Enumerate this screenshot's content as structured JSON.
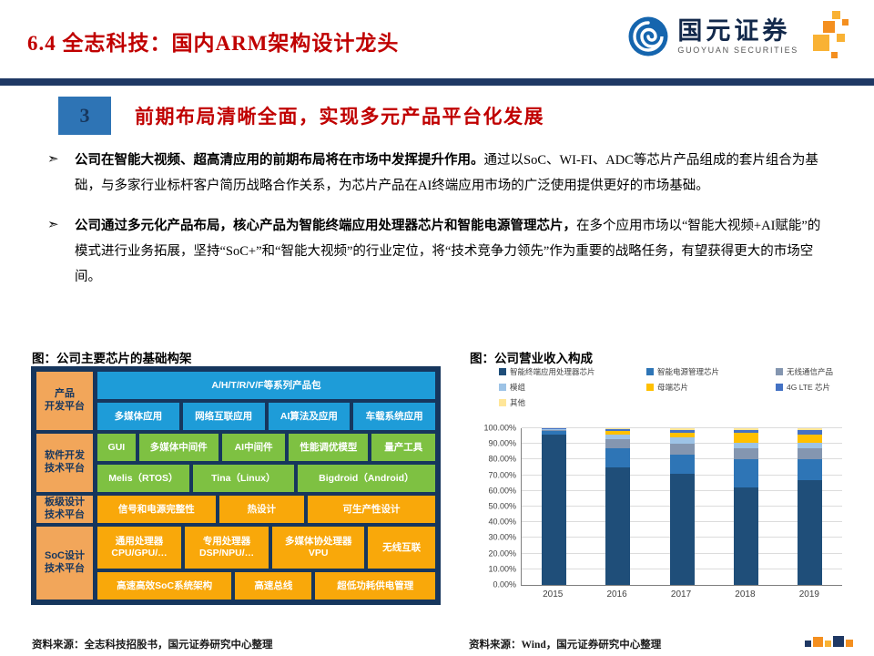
{
  "colors": {
    "title_red": "#C00000",
    "navy_bar": "#1F3864",
    "section_box_blue": "#2E74B5",
    "logo_blue": "#1565AE",
    "logo_orange": "#F48F1F"
  },
  "header": {
    "title": "6.4 全志科技：国内ARM架构设计龙头",
    "logo_cn": "国元证券",
    "logo_en": "GUOYUAN SECURITIES"
  },
  "section": {
    "number": "3",
    "title": "前期布局清晰全面，实现多元产品平台化发展"
  },
  "bullets": [
    {
      "bold": "公司在智能大视频、超高清应用的前期布局将在市场中发挥提升作用。",
      "rest": "通过以SoC、WI-FI、ADC等芯片产品组成的套片组合为基础，与多家行业标杆客户简历战略合作关系，为芯片产品在AI终端应用市场的广泛使用提供更好的市场基础。"
    },
    {
      "bold": "公司通过多元化产品布局，核心产品为智能终端应用处理器芯片和智能电源管理芯片，",
      "rest": "在多个应用市场以“智能大视频+AI赋能”的模式进行业务拓展，坚持“SoC+”和“智能大视频”的行业定位，将“技术竞争力领先”作为重要的战略任务，有望获得更大的市场空间。"
    }
  ],
  "left_figure": {
    "title": "图：公司主要芯片的基础构架",
    "palette": {
      "bg": "#16365D",
      "sidebar": "#F2A65A",
      "blue": "#1E9CD8",
      "green": "#7EC142",
      "orange": "#F9A80A"
    },
    "sidebar": [
      {
        "label": "产品\n开发平台",
        "h": 64
      },
      {
        "label": "软件开发\n技术平台",
        "h": 64
      },
      {
        "label": "板级设计\n技术平台",
        "h": 30
      },
      {
        "label": "SoC设计\n技术平台",
        "h": 80
      }
    ],
    "rows": [
      {
        "color": "blue",
        "h": 30,
        "cells": [
          {
            "label": "A/H/T/R/V/F等系列产品包",
            "flex": 1
          }
        ]
      },
      {
        "color": "blue",
        "h": 30,
        "cells": [
          {
            "label": "多媒体应用",
            "flex": 1
          },
          {
            "label": "网络互联应用",
            "flex": 1
          },
          {
            "label": "AI算法及应用",
            "flex": 1
          },
          {
            "label": "车载系统应用",
            "flex": 1
          }
        ]
      },
      {
        "color": "green",
        "h": 30,
        "cells": [
          {
            "label": "GUI",
            "flex": 0.6
          },
          {
            "label": "多媒体中间件",
            "flex": 1.25
          },
          {
            "label": "AI中间件",
            "flex": 1
          },
          {
            "label": "性能调优模型",
            "flex": 1.25
          },
          {
            "label": "量产工具",
            "flex": 1
          }
        ]
      },
      {
        "color": "green",
        "h": 30,
        "cells": [
          {
            "label": "Melis（RTOS）",
            "flex": 1
          },
          {
            "label": "Tina（Linux）",
            "flex": 1.1
          },
          {
            "label": "Bigdroid（Android）",
            "flex": 1.5
          }
        ]
      },
      {
        "color": "orange",
        "h": 30,
        "cells": [
          {
            "label": "信号和电源完整性",
            "flex": 1.25
          },
          {
            "label": "热设计",
            "flex": 0.9
          },
          {
            "label": "可生产性设计",
            "flex": 1.35
          }
        ]
      },
      {
        "color": "orange",
        "h": 46,
        "cells": [
          {
            "label": "通用处理器\nCPU/GPU/…",
            "flex": 1
          },
          {
            "label": "专用处理器\nDSP/NPU/…",
            "flex": 1
          },
          {
            "label": "多媒体协处理器\nVPU",
            "flex": 1.1
          },
          {
            "label": "无线互联",
            "flex": 0.8
          }
        ]
      },
      {
        "color": "orange",
        "h": 30,
        "cells": [
          {
            "label": "高速高效SoC系统架构",
            "flex": 1.4
          },
          {
            "label": "高速总线",
            "flex": 0.8
          },
          {
            "label": "超低功耗供电管理",
            "flex": 1.25
          }
        ]
      }
    ]
  },
  "right_figure": {
    "title": "图：公司营业收入构成"
  },
  "chart_data": {
    "type": "bar",
    "stacked": true,
    "title": "公司营业收入构成",
    "xlabel": "",
    "ylabel": "",
    "ylim": [
      0,
      100
    ],
    "grid": true,
    "legend_position": "top",
    "categories": [
      "2015",
      "2016",
      "2017",
      "2018",
      "2019"
    ],
    "yticks": [
      "0.00%",
      "10.00%",
      "20.00%",
      "30.00%",
      "40.00%",
      "50.00%",
      "60.00%",
      "70.00%",
      "80.00%",
      "90.00%",
      "100.00%"
    ],
    "series": [
      {
        "name": "智能终端应用处理器芯片",
        "color": "#1F4E79",
        "values": [
          96.0,
          75.0,
          71.0,
          62.0,
          67.0
        ]
      },
      {
        "name": "智能电源管理芯片",
        "color": "#2E75B6",
        "values": [
          2.0,
          12.0,
          12.0,
          18.0,
          13.0
        ]
      },
      {
        "name": "无线通信产品",
        "color": "#8496B0",
        "values": [
          0.8,
          6.0,
          7.0,
          7.0,
          7.0
        ]
      },
      {
        "name": "模组",
        "color": "#9DC3E6",
        "values": [
          0.5,
          3.0,
          4.0,
          4.0,
          4.0
        ]
      },
      {
        "name": "母端芯片",
        "color": "#FFC000",
        "values": [
          0.3,
          2.0,
          3.0,
          6.0,
          5.0
        ]
      },
      {
        "name": "4G LTE 芯片",
        "color": "#4472C4",
        "values": [
          0.2,
          1.5,
          2.0,
          2.0,
          3.0
        ]
      },
      {
        "name": "其他",
        "color": "#FFE699",
        "values": [
          0.2,
          0.5,
          1.0,
          1.0,
          1.0
        ]
      }
    ]
  },
  "footer": {
    "left_source": "资料来源：全志科技招股书，国元证券研究中心整理",
    "right_source": "资料来源：Wind，国元证券研究中心整理"
  }
}
